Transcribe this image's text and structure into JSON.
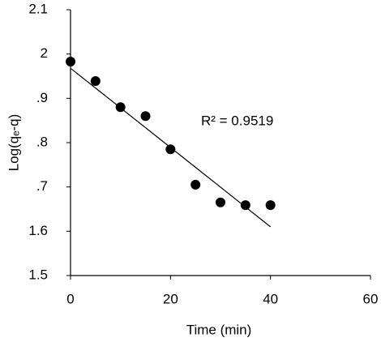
{
  "chart_data": {
    "type": "scatter",
    "xlabel": "Time (min)",
    "ylabel": "Log(qₑ-q)",
    "x": [
      0,
      5,
      10,
      15,
      20,
      25,
      30,
      35,
      40
    ],
    "values": [
      1.983,
      1.939,
      1.88,
      1.86,
      1.785,
      1.705,
      1.665,
      1.659,
      1.659
    ],
    "color": "#000000",
    "trendline": {
      "x": [
        0,
        40
      ],
      "values": [
        1.968,
        1.61
      ]
    },
    "annotation": "R² = 0.9519",
    "xlim": [
      0,
      60
    ],
    "xticks": [
      0,
      20,
      40,
      60
    ],
    "ylim": [
      1.5,
      2.1
    ],
    "yticks": [
      1.5,
      1.6,
      {
        "value": 1.7,
        "label": ".7"
      },
      {
        "value": 1.8,
        "label": ".8"
      },
      {
        "value": 1.9,
        "label": ".9"
      },
      2,
      2.1
    ]
  }
}
